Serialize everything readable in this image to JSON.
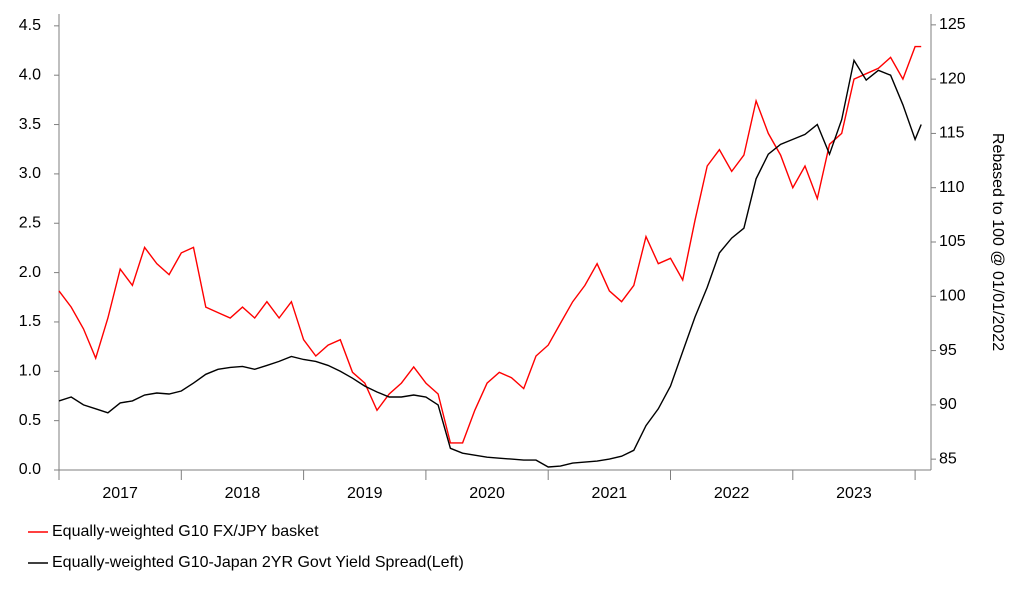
{
  "chart_data": {
    "type": "line",
    "y2label": "Rebased to 100 @ 01/01/2022",
    "x": [
      2017.0,
      2017.1,
      2017.2,
      2017.3,
      2017.4,
      2017.5,
      2017.6,
      2017.7,
      2017.8,
      2017.9,
      2018.0,
      2018.1,
      2018.2,
      2018.3,
      2018.4,
      2018.5,
      2018.6,
      2018.7,
      2018.8,
      2018.9,
      2019.0,
      2019.1,
      2019.2,
      2019.3,
      2019.4,
      2019.5,
      2019.6,
      2019.7,
      2019.8,
      2019.9,
      2020.0,
      2020.1,
      2020.2,
      2020.3,
      2020.4,
      2020.5,
      2020.6,
      2020.7,
      2020.8,
      2020.9,
      2021.0,
      2021.1,
      2021.2,
      2021.3,
      2021.4,
      2021.5,
      2021.6,
      2021.7,
      2021.8,
      2021.9,
      2022.0,
      2022.1,
      2022.2,
      2022.3,
      2022.4,
      2022.5,
      2022.6,
      2022.7,
      2022.8,
      2022.9,
      2023.0,
      2023.1,
      2023.2,
      2023.3,
      2023.4,
      2023.5,
      2023.6,
      2023.7,
      2023.8,
      2023.9,
      2024.0,
      2024.05
    ],
    "xlim": [
      2017,
      2024.13
    ],
    "xtick_marks": [
      2017,
      2018,
      2019,
      2020,
      2021,
      2022,
      2023,
      2024
    ],
    "xticks": [
      {
        "value": 2017.5,
        "label": "2017"
      },
      {
        "value": 2018.5,
        "label": "2018"
      },
      {
        "value": 2019.5,
        "label": "2019"
      },
      {
        "value": 2020.5,
        "label": "2020"
      },
      {
        "value": 2021.5,
        "label": "2021"
      },
      {
        "value": 2022.5,
        "label": "2022"
      },
      {
        "value": 2023.5,
        "label": "2023"
      }
    ],
    "ylim": [
      0,
      4.62
    ],
    "yticks": [
      {
        "value": 0,
        "label": "0.0"
      },
      0.5,
      {
        "value": 1,
        "label": "1.0"
      },
      1.5,
      {
        "value": 2,
        "label": "2.0"
      },
      2.5,
      {
        "value": 3,
        "label": "3.0"
      },
      3.5,
      {
        "value": 4,
        "label": "4.0"
      },
      4.5
    ],
    "y2lim": [
      84,
      126
    ],
    "y2ticks": [
      85,
      90,
      95,
      100,
      105,
      110,
      115,
      120,
      125
    ],
    "series": [
      {
        "name": "Equally-weighted G10 FX/JPY basket",
        "color": "#ff0000",
        "axis": "y2",
        "values": [
          100.5,
          99,
          97,
          94.3,
          98,
          102.5,
          101,
          104.5,
          103,
          102,
          104,
          104.5,
          99,
          98.5,
          98,
          99,
          98,
          99.5,
          98,
          99.5,
          96,
          94.5,
          95.5,
          96,
          93,
          92,
          89.5,
          91,
          92,
          93.5,
          92,
          91,
          86.5,
          86.5,
          89.5,
          92,
          93,
          92.5,
          91.5,
          94.5,
          95.5,
          97.5,
          99.5,
          101,
          103,
          100.5,
          99.5,
          101,
          105.5,
          103,
          103.5,
          101.5,
          107,
          112,
          113.5,
          111.5,
          113,
          118,
          115,
          113,
          110,
          112,
          109,
          114,
          115,
          120,
          120.5,
          121,
          122,
          120,
          123,
          123
        ]
      },
      {
        "name": "Equally-weighted G10-Japan 2YR Govt Yield Spread(Left)",
        "color": "#000000",
        "values": [
          0.7,
          0.74,
          0.66,
          0.62,
          0.58,
          0.68,
          0.7,
          0.76,
          0.78,
          0.77,
          0.8,
          0.88,
          0.97,
          1.02,
          1.04,
          1.05,
          1.02,
          1.06,
          1.1,
          1.15,
          1.12,
          1.1,
          1.06,
          1.0,
          0.93,
          0.85,
          0.79,
          0.74,
          0.74,
          0.76,
          0.74,
          0.66,
          0.22,
          0.17,
          0.15,
          0.13,
          0.12,
          0.11,
          0.1,
          0.1,
          0.03,
          0.04,
          0.07,
          0.08,
          0.09,
          0.11,
          0.14,
          0.2,
          0.45,
          0.62,
          0.85,
          1.2,
          1.55,
          1.85,
          2.2,
          2.35,
          2.45,
          2.95,
          3.2,
          3.3,
          3.35,
          3.4,
          3.5,
          3.2,
          3.55,
          4.15,
          3.95,
          4.05,
          4.0,
          3.7,
          3.35,
          3.5
        ]
      }
    ]
  }
}
